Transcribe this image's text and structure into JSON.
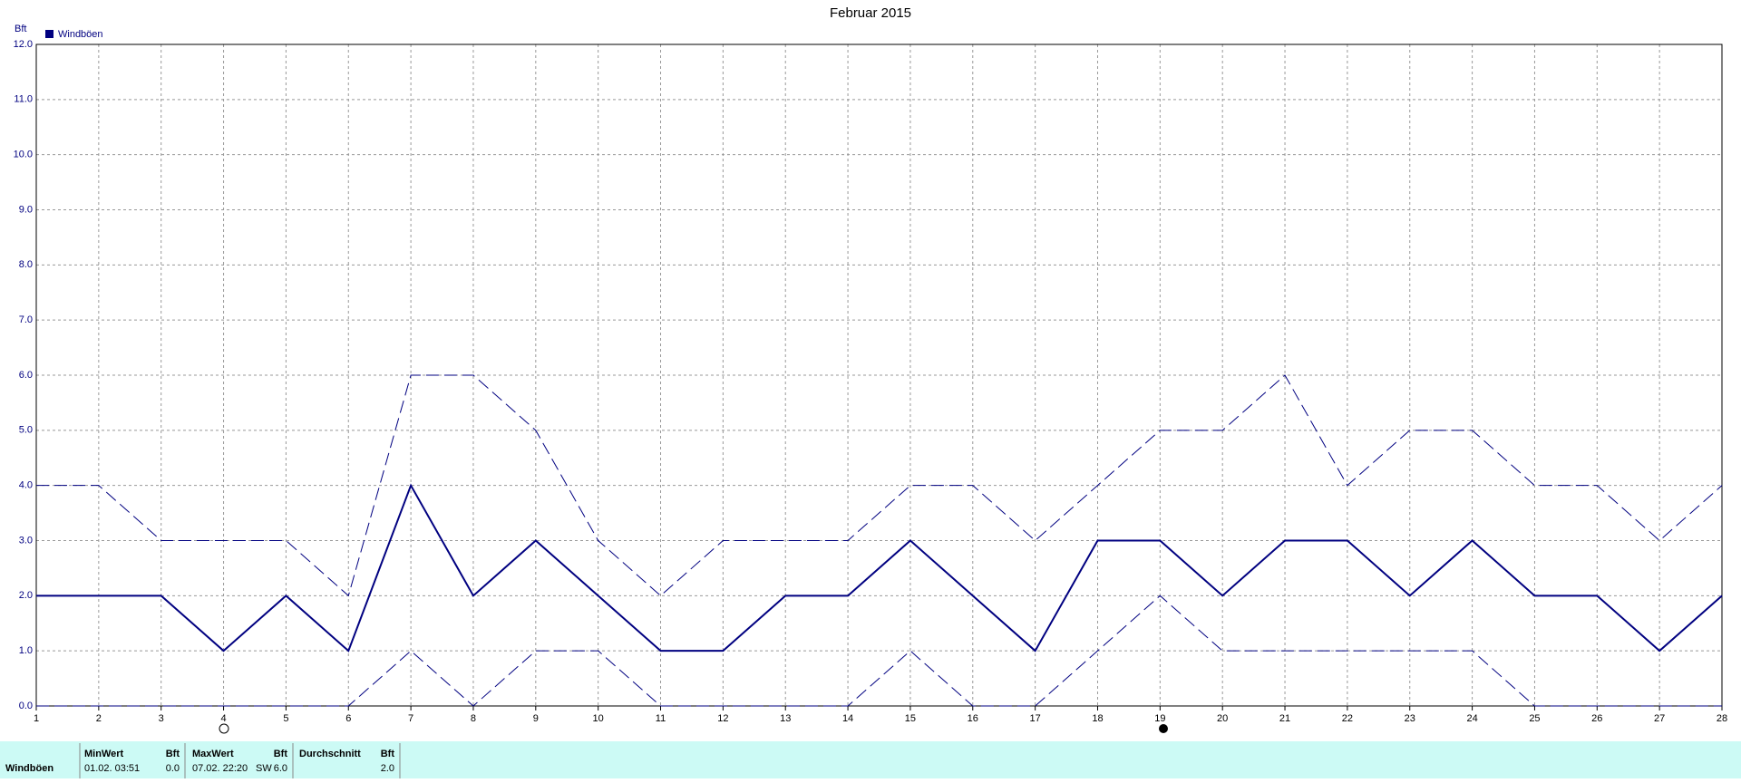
{
  "chart_data": {
    "type": "line",
    "title": "Februar 2015",
    "y_label": "Bft",
    "x": [
      1,
      2,
      3,
      4,
      5,
      6,
      7,
      8,
      9,
      10,
      11,
      12,
      13,
      14,
      15,
      16,
      17,
      18,
      19,
      20,
      21,
      22,
      23,
      24,
      25,
      26,
      27,
      28
    ],
    "xlim": [
      1,
      28
    ],
    "xticks": [
      1,
      2,
      3,
      4,
      5,
      6,
      7,
      8,
      9,
      10,
      11,
      12,
      13,
      14,
      15,
      16,
      17,
      18,
      19,
      20,
      21,
      22,
      23,
      24,
      25,
      26,
      27,
      28
    ],
    "ylim": [
      0,
      12
    ],
    "yticks": [
      {
        "value": 0,
        "label": "0.0"
      },
      {
        "value": 1,
        "label": "1.0"
      },
      {
        "value": 2,
        "label": "2.0"
      },
      {
        "value": 3,
        "label": "3.0"
      },
      {
        "value": 4,
        "label": "4.0"
      },
      {
        "value": 5,
        "label": "5.0"
      },
      {
        "value": 6,
        "label": "6.0"
      },
      {
        "value": 7,
        "label": "7.0"
      },
      {
        "value": 8,
        "label": "8.0"
      },
      {
        "value": 9,
        "label": "9.0"
      },
      {
        "value": 10,
        "label": "10.0"
      },
      {
        "value": 11,
        "label": "11.0"
      },
      {
        "value": 12,
        "label": "12.0"
      }
    ],
    "grid": true,
    "legend": "top-left",
    "series": [
      {
        "name": "Windböen",
        "color": "#000080",
        "values": [
          2,
          2,
          2,
          1,
          2,
          1,
          4,
          2,
          3,
          2,
          1,
          1,
          2,
          2,
          3,
          2,
          1,
          3,
          3,
          2,
          3,
          3,
          2,
          3,
          2,
          2,
          1,
          2
        ]
      },
      {
        "color": "#000080",
        "style": "dashed",
        "values": [
          4,
          4,
          3,
          3,
          3,
          2,
          6,
          6,
          5,
          3,
          2,
          3,
          3,
          3,
          4,
          4,
          3,
          4,
          5,
          5,
          6,
          4,
          5,
          5,
          4,
          4,
          3,
          4
        ]
      },
      {
        "color": "#000080",
        "style": "dashed",
        "values": [
          0,
          0,
          0,
          0,
          0,
          0,
          1,
          0,
          1,
          1,
          0,
          0,
          0,
          0,
          1,
          0,
          0,
          1,
          2,
          1,
          1,
          1,
          1,
          1,
          0,
          0,
          0,
          0
        ]
      }
    ]
  },
  "table": {
    "row_label": "Windböen",
    "min": {
      "header": "MinWert",
      "unit": "Bft",
      "date": "01.02.  03:51",
      "value": "0.0"
    },
    "max": {
      "header": "MaxWert",
      "unit": "Bft",
      "date": "07.02.  22:20",
      "dir": "SW",
      "value": "6.0"
    },
    "avg": {
      "header": "Durchschnitt",
      "unit": "Bft",
      "value": "2.0"
    }
  }
}
